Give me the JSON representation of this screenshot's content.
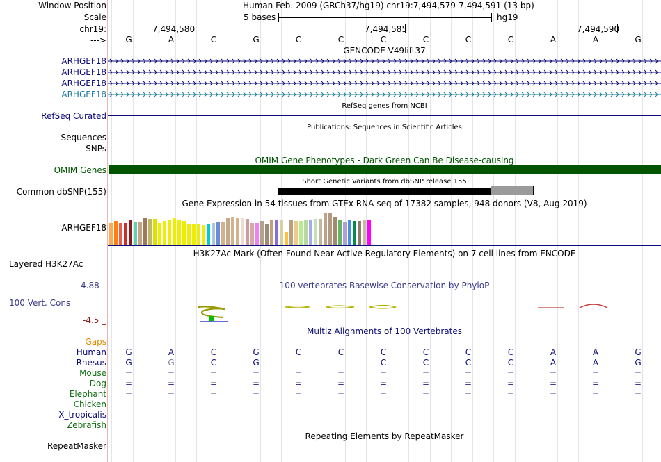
{
  "header": {
    "window_position_label": "Window Position",
    "window_position_value": "Human Feb. 2009 (GRCh37/hg19)   chr19:7,494,579-7,494,591 (13 bp)",
    "scale_label": "Scale",
    "scale_left": "5 bases",
    "scale_right": "hg19",
    "chrom_label": "chr19:",
    "ticks": [
      "7,494,580",
      "7,494,585",
      "7,494,590"
    ],
    "arrow_label": "--->",
    "bases": [
      "G",
      "A",
      "C",
      "G",
      "C",
      "C",
      "C",
      "C",
      "C",
      "C",
      "A",
      "A",
      "G"
    ]
  },
  "tracks": {
    "gencode": {
      "title": "GENCODE V49lift37",
      "genes": [
        {
          "label": "ARHGEF18",
          "color": "#0c0c78"
        },
        {
          "label": "ARHGEF18",
          "color": "#0c0c78"
        },
        {
          "label": "ARHGEF18",
          "color": "#0c0c78"
        },
        {
          "label": "ARHGEF18",
          "color": "#1a7ba0"
        }
      ]
    },
    "refseq": {
      "label": "RefSeq Curated",
      "title": "RefSeq genes from NCBI",
      "color": "#0c0c78"
    },
    "publications": {
      "title": "Publications: Sequences in Scientific Articles",
      "label1": "Sequences",
      "label2": "SNPs"
    },
    "omim": {
      "label": "OMIM Genes",
      "title": "OMIM Gene Phenotypes - Dark Green Can Be Disease-causing",
      "color": "#005300"
    },
    "dbsnp": {
      "label": "Common dbSNP(155)",
      "title": "Short Genetic Variants from dbSNP release 155"
    },
    "gtex": {
      "title": "Gene Expression in 54 tissues from GTEx RNA-seq of 17382 samples, 948 donors (V8, Aug 2019)",
      "label": "ARHGEF18",
      "values": [
        0.6,
        0.65,
        0.6,
        0.6,
        0.68,
        0.62,
        0.62,
        0.74,
        0.72,
        0.72,
        0.6,
        0.65,
        0.68,
        0.74,
        0.68,
        0.66,
        0.58,
        0.56,
        0.56,
        0.54,
        0.58,
        0.6,
        0.64,
        0.64,
        0.74,
        0.76,
        0.74,
        0.74,
        0.72,
        0.6,
        0.6,
        0.66,
        0.58,
        0.7,
        0.7,
        0.68,
        0.34,
        0.7,
        0.65,
        0.65,
        0.68,
        0.7,
        0.72,
        0.72,
        0.86,
        0.88,
        0.76,
        0.7,
        0.62,
        0.68,
        0.66,
        0.66,
        0.7,
        0.68
      ],
      "colors": [
        "#ffaa55",
        "#ff7f0e",
        "#ee5a50",
        "#cc2e28",
        "#8b1a1a",
        "#66cdaa",
        "#c4a484",
        "#9e7a5a",
        "#bdb76b",
        "#e0e000",
        "#eeee00",
        "#eeee00",
        "#eeee00",
        "#eeee00",
        "#eeee00",
        "#eeee00",
        "#eeee00",
        "#eeee00",
        "#eeee00",
        "#eeee00",
        "#00cdcd",
        "#b0c4de",
        "#6a8bd8",
        "#d2b48c",
        "#c8a88a",
        "#d2b48c",
        "#d2b48c",
        "#eedad0",
        "#cd9b9b",
        "#d8a8a8",
        "#ee82ee",
        "#b4a090",
        "#a08a70",
        "#c0a080",
        "#8a6fd8",
        "#d8d0a0",
        "#ffc040",
        "#b8a080",
        "#eecb8a",
        "#b4ee8c",
        "#b8d8a0",
        "#a8a8ee",
        "#c0e0c0",
        "#c2b89e",
        "#bfa08a",
        "#b09a80",
        "#a08a70",
        "#64b464",
        "#b0a0d8",
        "#4a90e0",
        "#0a8a4a",
        "#8a7a6a",
        "#c8b8a0",
        "#ff00ff"
      ]
    },
    "h3k27ac": {
      "label": "Layered H3K27Ac",
      "title": "H3K27Ac Mark (Often Found Near Active Regulatory Elements) on 7 cell lines from ENCODE"
    },
    "phylop": {
      "label": "100 Vert. Cons",
      "max": "4.88 _",
      "min": "-4.5 _",
      "title": "100 vertebrates Basewise Conservation by PhyloP"
    },
    "multiz": {
      "title": "Multiz Alignments of 100 Vertebrates",
      "gaps_label": "Gaps",
      "species": [
        {
          "name": "Human",
          "color": "#0c0c78",
          "seq": [
            "G",
            "A",
            "C",
            "G",
            "C",
            "C",
            "C",
            "C",
            "C",
            "C",
            "A",
            "A",
            "G"
          ]
        },
        {
          "name": "Rhesus",
          "color": "#0c0c78",
          "seq": [
            "G",
            "G",
            "C",
            "G",
            "-",
            "-",
            "C",
            "C",
            "C",
            "C",
            "A",
            "A",
            "G"
          ]
        },
        {
          "name": "Mouse",
          "color": "#127012",
          "seq": [
            "=",
            "=",
            "=",
            "=",
            "=",
            "=",
            "=",
            "=",
            "=",
            "=",
            "=",
            "=",
            "="
          ]
        },
        {
          "name": "Dog",
          "color": "#127012",
          "seq": [
            "=",
            "=",
            "=",
            "=",
            "=",
            "=",
            "=",
            "=",
            "=",
            "=",
            "=",
            "=",
            "="
          ]
        },
        {
          "name": "Elephant",
          "color": "#127012",
          "seq": [
            "=",
            "=",
            "=",
            "=",
            "=",
            "=",
            "=",
            "=",
            "=",
            "=",
            "=",
            "=",
            "="
          ]
        },
        {
          "name": "Chicken",
          "color": "#127012",
          "seq": []
        },
        {
          "name": "X_tropicalis",
          "color": "#0c0c78",
          "seq": []
        },
        {
          "name": "Zebrafish",
          "color": "#127012",
          "seq": []
        }
      ]
    },
    "repeatmasker": {
      "label": "RepeatMasker",
      "title": "Repeating Elements by RepeatMasker"
    }
  }
}
